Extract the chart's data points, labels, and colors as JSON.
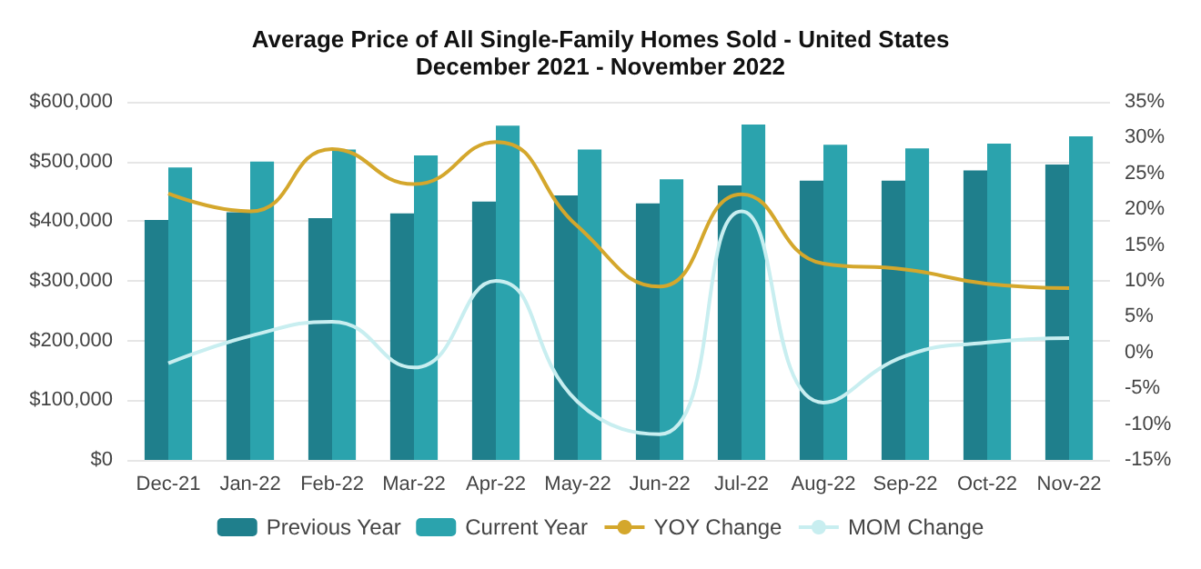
{
  "chart_data": {
    "type": "bar",
    "title": "Average Price of All Single-Family Homes Sold - United States",
    "subtitle": "December 2021 - November 2022",
    "categories": [
      "Dec-21",
      "Jan-22",
      "Feb-22",
      "Mar-22",
      "Apr-22",
      "May-22",
      "Jun-22",
      "Jul-22",
      "Aug-22",
      "Sep-22",
      "Oct-22",
      "Nov-22"
    ],
    "series": [
      {
        "name": "Previous Year",
        "color": "#1f7f8c",
        "values": [
          402000,
          415000,
          405000,
          413000,
          433000,
          443000,
          430000,
          460000,
          468000,
          468000,
          485000,
          495000
        ]
      },
      {
        "name": "Current Year",
        "color": "#2ba3ad",
        "values": [
          490000,
          500000,
          520000,
          510000,
          560000,
          520000,
          470000,
          562000,
          528000,
          522000,
          530000,
          542000
        ]
      },
      {
        "name": "YOY Change",
        "type": "line",
        "axis": "y2",
        "color": "#d4a72c",
        "values": [
          22.2,
          19.7,
          28.4,
          23.5,
          29.4,
          17.6,
          9.2,
          22.1,
          12.4,
          11.6,
          9.6,
          9
        ]
      },
      {
        "name": "MOM Change",
        "type": "line",
        "axis": "y2",
        "color": "#c8eef0",
        "values": [
          -1.5,
          2.3,
          4.3,
          -2.1,
          10,
          -6.9,
          -11.4,
          19.7,
          -7,
          -0.5,
          1.4,
          2
        ]
      }
    ],
    "ylim": [
      0,
      600000
    ],
    "yticks": [
      {
        "value": 0,
        "label": "$0"
      },
      {
        "value": 100000,
        "label": "$100,000"
      },
      {
        "value": 200000,
        "label": "$200,000"
      },
      {
        "value": 300000,
        "label": "$300,000"
      },
      {
        "value": 400000,
        "label": "$400,000"
      },
      {
        "value": 500000,
        "label": "$500,000"
      },
      {
        "value": 600000,
        "label": "$600,000"
      }
    ],
    "y2lim": [
      -15,
      35
    ],
    "y2ticks": [
      {
        "value": -15,
        "label": "-15%"
      },
      {
        "value": -10,
        "label": "-10%"
      },
      {
        "value": -5,
        "label": "-5%"
      },
      {
        "value": 0,
        "label": "0%"
      },
      {
        "value": 5,
        "label": "5%"
      },
      {
        "value": 10,
        "label": "10%"
      },
      {
        "value": 15,
        "label": "15%"
      },
      {
        "value": 20,
        "label": "20%"
      },
      {
        "value": 25,
        "label": "25%"
      },
      {
        "value": 30,
        "label": "30%"
      },
      {
        "value": 35,
        "label": "35%"
      }
    ],
    "grid": "y",
    "legend": "bottom",
    "marker": "none"
  }
}
